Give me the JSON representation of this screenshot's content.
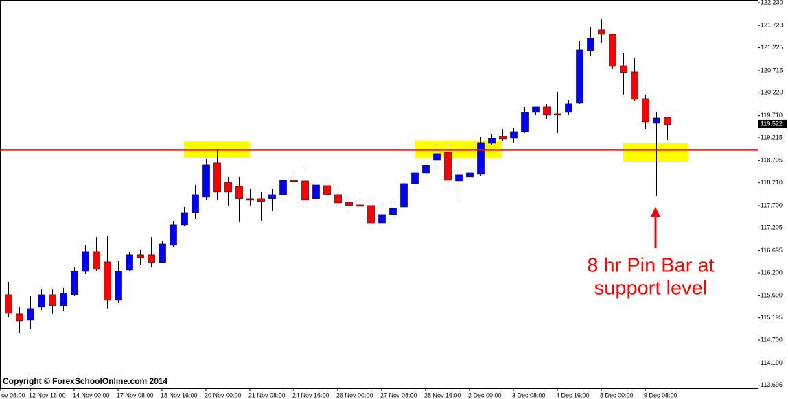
{
  "chart_data": {
    "type": "candlestick",
    "copyright": "Copyright © ForexSchoolOnline.com 2014",
    "annotation": [
      "8 hr Pin Bar at",
      "support level"
    ],
    "current_price": {
      "value": 119.522,
      "label": "119.522"
    },
    "support_level": 118.941,
    "up_color": "#0000ff",
    "down_color": "#ff0000",
    "line_color": "#ff0000",
    "open": [
      115.712,
      115.284,
      115.146,
      115.437,
      115.712,
      115.467,
      115.712,
      116.232,
      116.676,
      116.446,
      115.59,
      116.263,
      116.6,
      116.6,
      116.431,
      116.814,
      117.273,
      117.548,
      117.885,
      118.65,
      118.221,
      118.13,
      117.854,
      117.854,
      117.854,
      117.946,
      118.267,
      118.252,
      117.854,
      118.145,
      117.946,
      117.778,
      117.716,
      117.701,
      117.303,
      117.502,
      117.67,
      118.191,
      118.42,
      118.711,
      118.894,
      118.252,
      118.344,
      118.405,
      119.093,
      119.246,
      119.2,
      119.353,
      119.782,
      119.904,
      119.751,
      119.782,
      119.996,
      121.159,
      121.618,
      121.526,
      120.822,
      120.685,
      120.088,
      119.537,
      119.675
    ],
    "high": [
      115.987,
      115.437,
      115.681,
      115.834,
      115.834,
      115.865,
      116.324,
      116.814,
      116.997,
      117.028,
      116.477,
      116.661,
      116.722,
      116.997,
      116.905,
      117.364,
      117.67,
      118.16,
      118.742,
      118.956,
      118.344,
      118.344,
      118.069,
      118.007,
      118.069,
      118.374,
      118.466,
      118.558,
      118.221,
      118.191,
      118.038,
      117.854,
      117.824,
      117.762,
      117.701,
      117.854,
      118.282,
      118.497,
      118.742,
      119.047,
      119.109,
      118.466,
      118.527,
      119.231,
      119.292,
      119.415,
      119.445,
      119.904,
      119.904,
      119.966,
      120.241,
      120.057,
      121.373,
      121.679,
      121.863,
      121.526,
      121.098,
      121.006,
      120.18,
      119.782,
      119.69
    ],
    "low": [
      115.222,
      114.855,
      114.947,
      115.375,
      115.284,
      115.345,
      115.681,
      116.171,
      116.232,
      115.406,
      115.528,
      116.232,
      116.385,
      116.324,
      116.416,
      116.783,
      117.242,
      117.395,
      117.824,
      117.824,
      117.701,
      117.334,
      117.701,
      117.364,
      117.579,
      117.854,
      118.206,
      117.732,
      117.701,
      117.701,
      117.67,
      117.579,
      117.395,
      117.242,
      117.211,
      117.487,
      117.64,
      118.069,
      118.374,
      118.588,
      118.069,
      117.824,
      118.282,
      118.374,
      119.047,
      119.139,
      119.109,
      119.323,
      119.721,
      119.629,
      119.323,
      119.721,
      119.966,
      121.036,
      121.342,
      120.761,
      120.18,
      120.027,
      119.415,
      117.915,
      119.17
    ],
    "close": [
      115.299,
      115.131,
      115.406,
      115.712,
      115.467,
      115.743,
      116.232,
      116.676,
      116.278,
      115.59,
      116.232,
      116.6,
      116.538,
      116.431,
      116.844,
      117.273,
      117.548,
      117.946,
      118.619,
      118.007,
      118.007,
      117.854,
      117.824,
      117.793,
      117.946,
      118.267,
      118.237,
      117.824,
      118.16,
      117.946,
      117.762,
      117.701,
      117.686,
      117.303,
      117.502,
      117.64,
      118.191,
      118.435,
      118.604,
      118.864,
      118.267,
      118.39,
      118.435,
      119.109,
      119.2,
      119.185,
      119.353,
      119.782,
      119.904,
      119.721,
      119.721,
      119.981,
      121.174,
      121.434,
      121.526,
      120.807,
      120.669,
      120.073,
      119.568,
      119.659,
      119.506
    ],
    "xlim": [
      -0.75,
      68.25
    ],
    "xticks": [
      {
        "value": -0.75,
        "label": "ov 08:00"
      },
      {
        "value": 2,
        "label": "12 Nov 16:00"
      },
      {
        "value": 6,
        "label": "14 Nov 00:00"
      },
      {
        "value": 10,
        "label": "17 Nov 08:00"
      },
      {
        "value": 14,
        "label": "18 Nov 16:00"
      },
      {
        "value": 18,
        "label": "20 Nov 00:00"
      },
      {
        "value": 22,
        "label": "21 Nov 08:00"
      },
      {
        "value": 26,
        "label": "24 Nov 16:00"
      },
      {
        "value": 30,
        "label": "26 Nov 00:00"
      },
      {
        "value": 34,
        "label": "27 Nov 08:00"
      },
      {
        "value": 38,
        "label": "28 Nov 16:00"
      },
      {
        "value": 42,
        "label": "2 Dec 00:00"
      },
      {
        "value": 46,
        "label": "3 Dec 08:00"
      },
      {
        "value": 50,
        "label": "4 Dec 16:00"
      },
      {
        "value": 54,
        "label": "8 Dec 00:00"
      },
      {
        "value": 58,
        "label": "9 Dec 08:00"
      }
    ],
    "ylim": [
      113.63,
      122.29
    ],
    "yticks": [
      {
        "value": 122.23,
        "label": "122.230"
      },
      {
        "value": 121.72,
        "label": "121.720"
      },
      121.225,
      120.715,
      {
        "value": 120.22,
        "label": "120.220"
      },
      {
        "value": 119.71,
        "label": "119.710"
      },
      119.215,
      118.705,
      {
        "value": 118.21,
        "label": "118.210"
      },
      {
        "value": 117.7,
        "label": "117.700"
      },
      117.205,
      116.695,
      {
        "value": 116.2,
        "label": "116.200"
      },
      {
        "value": 115.69,
        "label": "115.690"
      },
      115.195,
      {
        "value": 114.7,
        "label": "114.700"
      },
      {
        "value": 114.19,
        "label": "114.190"
      },
      113.695
    ]
  }
}
